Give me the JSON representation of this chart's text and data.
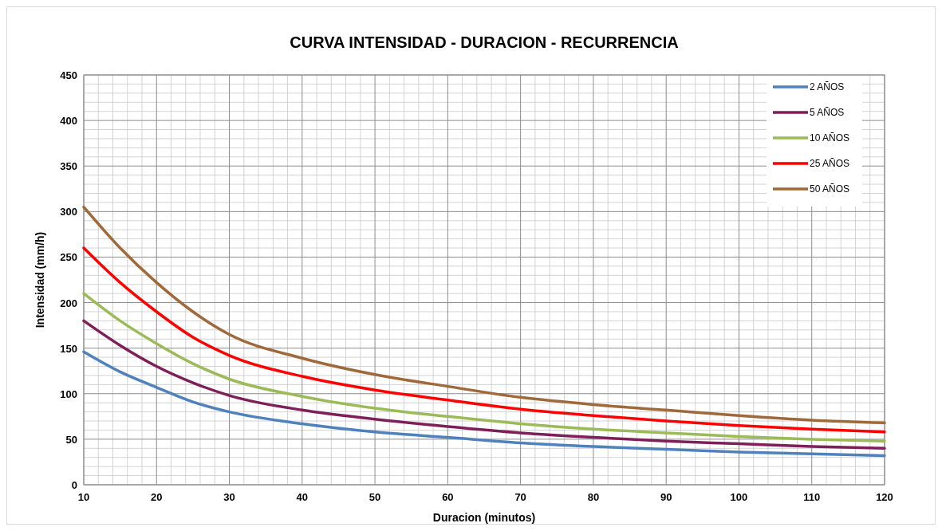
{
  "chart_data": {
    "type": "line",
    "title": "CURVA INTENSIDAD - DURACION - RECURRENCIA",
    "xlabel": "Duracion (minutos)",
    "ylabel": "Intensidad (mm/h)",
    "x": [
      10,
      15,
      20,
      25,
      30,
      40,
      50,
      60,
      70,
      80,
      90,
      100,
      110,
      120
    ],
    "series": [
      {
        "name": "2 AÑOS",
        "color": "#4f81bd",
        "values": [
          146,
          124,
          107,
          91,
          80,
          67,
          58,
          52,
          46,
          42,
          39,
          36,
          34,
          32
        ]
      },
      {
        "name": "5 AÑOS",
        "color": "#7f1f5a",
        "values": [
          180,
          153,
          130,
          112,
          98,
          82,
          72,
          64,
          57,
          52,
          48,
          45,
          42,
          40
        ]
      },
      {
        "name": "10 AÑOS",
        "color": "#9bbb59",
        "values": [
          210,
          180,
          155,
          133,
          116,
          97,
          84,
          75,
          67,
          61,
          57,
          53,
          50,
          48
        ]
      },
      {
        "name": "25 AÑOS",
        "color": "#ff0000",
        "values": [
          260,
          222,
          190,
          162,
          142,
          119,
          104,
          93,
          83,
          76,
          70,
          65,
          61,
          58
        ]
      },
      {
        "name": "50 AÑOS",
        "color": "#a0693a",
        "values": [
          305,
          260,
          222,
          190,
          165,
          139,
          121,
          108,
          96,
          88,
          82,
          76,
          71,
          68
        ]
      }
    ],
    "xlim": [
      10,
      120
    ],
    "xticks": [
      10,
      20,
      30,
      40,
      50,
      60,
      70,
      80,
      90,
      100,
      110,
      120
    ],
    "ylim": [
      0,
      450
    ],
    "yticks": [
      0,
      50,
      100,
      150,
      200,
      250,
      300,
      350,
      400,
      450
    ],
    "grid": true,
    "legend": "top right",
    "marker": "none",
    "line_style": "solid"
  }
}
